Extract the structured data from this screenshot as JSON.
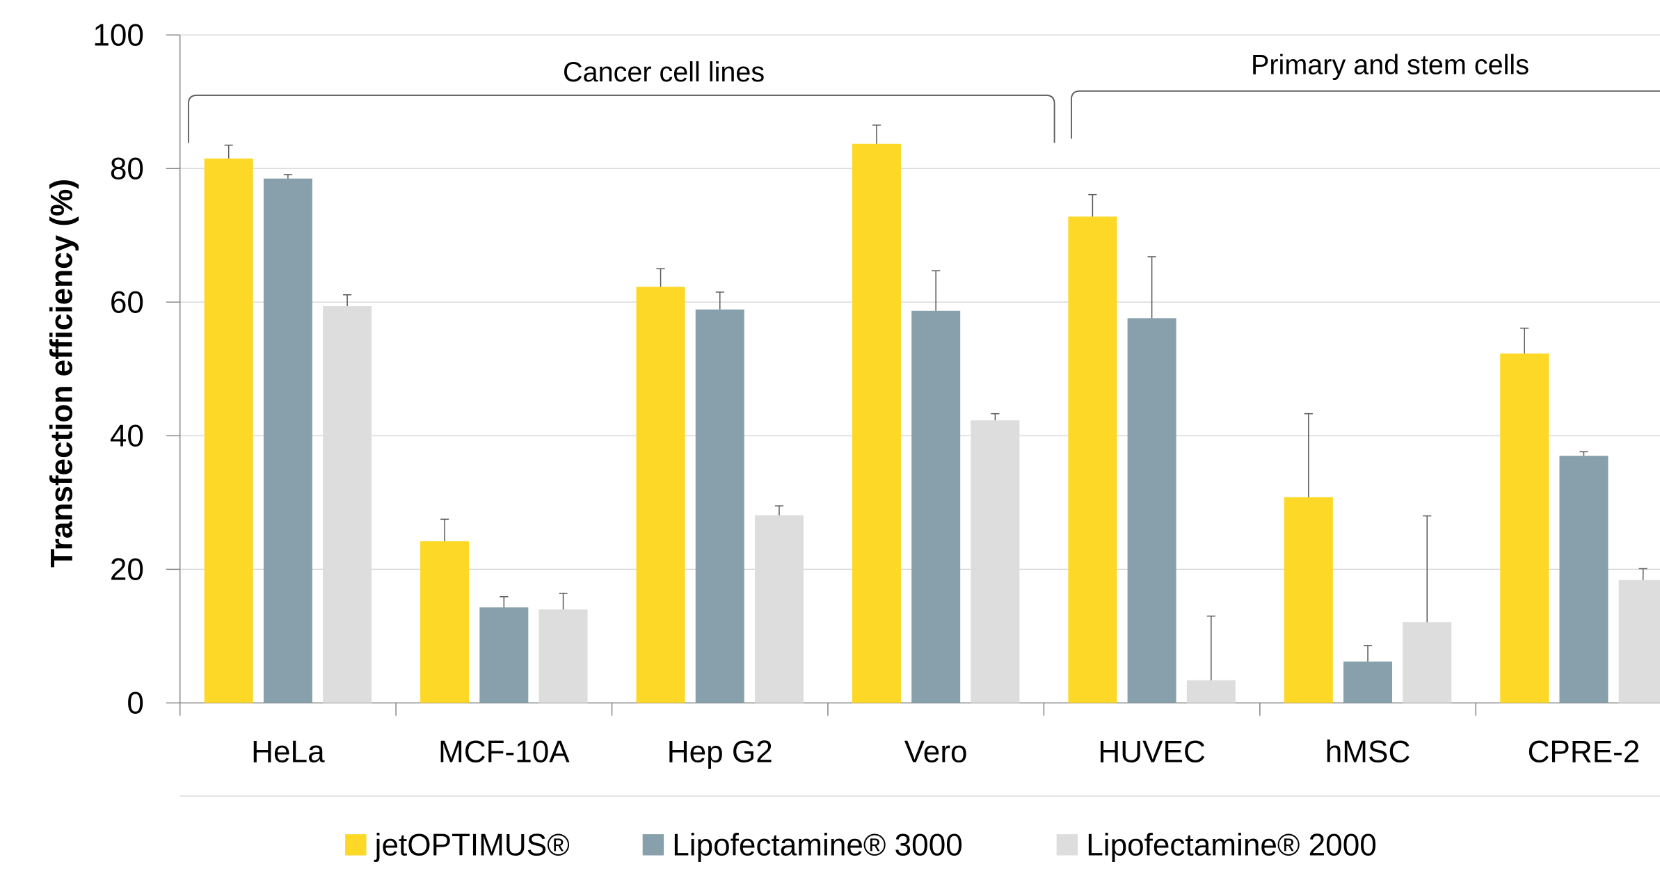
{
  "chart_data": {
    "type": "bar",
    "categories": [
      "HeLa",
      "MCF-10A",
      "Hep G2",
      "Vero",
      "HUVEC",
      "hMSC",
      "CPRE-2"
    ],
    "series": [
      {
        "name": "jetOPTIMUS®",
        "color": "#fdd826",
        "values": [
          81.5,
          24.2,
          62.3,
          83.7,
          72.8,
          30.8,
          52.3
        ],
        "errors": [
          2.0,
          3.3,
          2.7,
          2.8,
          3.3,
          12.5,
          3.8
        ]
      },
      {
        "name": "Lipofectamine® 3000",
        "color": "#88a0ac",
        "values": [
          78.5,
          14.3,
          58.9,
          58.7,
          57.6,
          6.2,
          37.0
        ],
        "errors": [
          0.6,
          1.6,
          2.6,
          6.0,
          9.2,
          2.4,
          0.6
        ]
      },
      {
        "name": "Lipofectamine® 2000",
        "color": "#dddddd",
        "values": [
          59.4,
          14.0,
          28.1,
          42.3,
          3.4,
          12.1,
          18.4
        ],
        "errors": [
          1.7,
          2.4,
          1.4,
          1.0,
          9.6,
          15.9,
          1.7
        ]
      }
    ],
    "xlabel": "",
    "ylabel": "Transfection efficiency (%)",
    "ylim": [
      0,
      100
    ],
    "yticks": [
      0,
      20,
      40,
      60,
      80,
      100
    ],
    "grid": true,
    "legend_position": "bottom",
    "annotations": [
      {
        "text": "Cancer cell lines",
        "from_category": 0,
        "to_category": 3
      },
      {
        "text": "Primary and stem cells",
        "from_category": 4,
        "to_category": 6
      }
    ]
  }
}
